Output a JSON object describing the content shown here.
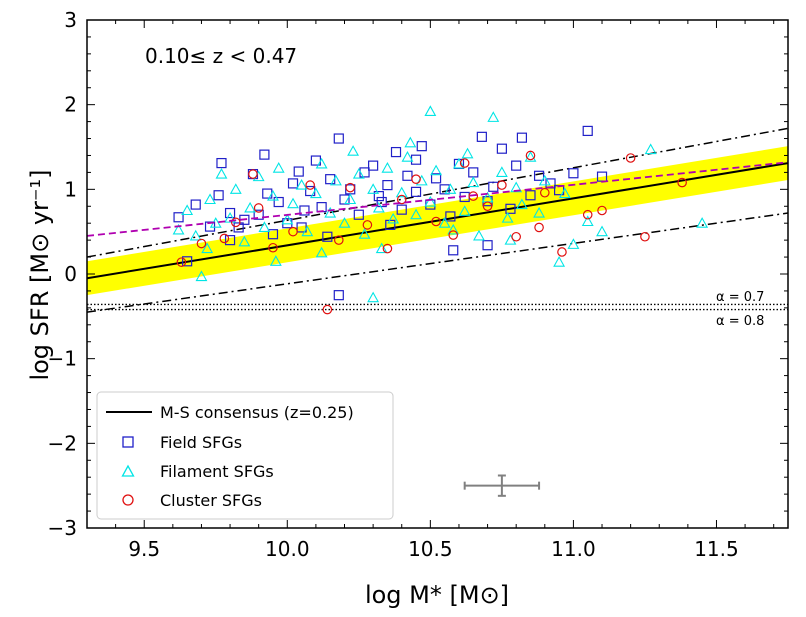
{
  "chart_data": {
    "type": "scatter",
    "annotation": "0.10≤  z < 0.47",
    "xlabel": "log M* [M⊙]",
    "ylabel": "log SFR [M⊙ yr⁻¹]",
    "xlim": [
      9.3,
      11.75
    ],
    "ylim": [
      -3,
      3
    ],
    "xticks": [
      9.5,
      10.0,
      10.5,
      11.0,
      11.5
    ],
    "xtick_labels": [
      "9.5",
      "10.0",
      "10.5",
      "11.0",
      "11.5"
    ],
    "yticks": [
      -3,
      -2,
      -1,
      0,
      1,
      2,
      3
    ],
    "ytick_labels": [
      "−3",
      "−2",
      "−1",
      "0",
      "1",
      "2",
      "3"
    ],
    "ms_consensus": {
      "label": "M-S consensus (z=0.25)",
      "x": [
        9.3,
        11.75
      ],
      "y": [
        -0.05,
        1.31
      ],
      "band_halfwidth": 0.2,
      "band_color": "#ffff00"
    },
    "dashdot_upper": {
      "x": [
        9.3,
        11.75
      ],
      "y": [
        0.2,
        1.72
      ]
    },
    "dashdot_lower": {
      "x": [
        9.3,
        11.75
      ],
      "y": [
        -0.45,
        0.72
      ]
    },
    "magenta_fit": {
      "x": [
        9.3,
        11.75
      ],
      "y": [
        0.45,
        1.32
      ],
      "color": "#b000b0"
    },
    "alpha_lines": [
      {
        "label": "α = 0.7",
        "y": -0.36
      },
      {
        "label": "α = 0.8",
        "y": -0.42
      }
    ],
    "error_bar": {
      "x": 10.75,
      "y": -2.5,
      "xerr": 0.13,
      "yerr": 0.12
    },
    "series": [
      {
        "name": "Field SFGs",
        "marker": "square",
        "color": "#2020c8",
        "points": [
          [
            9.62,
            0.67
          ],
          [
            9.65,
            0.15
          ],
          [
            9.68,
            0.82
          ],
          [
            9.73,
            0.56
          ],
          [
            9.76,
            0.93
          ],
          [
            9.77,
            1.31
          ],
          [
            9.8,
            0.72
          ],
          [
            9.83,
            0.55
          ],
          [
            9.85,
            0.64
          ],
          [
            9.88,
            1.18
          ],
          [
            9.9,
            0.7
          ],
          [
            9.92,
            1.41
          ],
          [
            9.95,
            0.47
          ],
          [
            9.97,
            0.85
          ],
          [
            10.0,
            0.6
          ],
          [
            10.02,
            1.07
          ],
          [
            10.04,
            1.21
          ],
          [
            10.06,
            0.75
          ],
          [
            10.08,
            0.98
          ],
          [
            10.1,
            1.34
          ],
          [
            10.12,
            0.79
          ],
          [
            10.14,
            0.44
          ],
          [
            10.15,
            1.12
          ],
          [
            10.18,
            1.6
          ],
          [
            10.2,
            0.88
          ],
          [
            10.22,
            1.0
          ],
          [
            10.25,
            0.7
          ],
          [
            10.27,
            1.2
          ],
          [
            10.3,
            1.28
          ],
          [
            10.32,
            0.92
          ],
          [
            10.35,
            1.05
          ],
          [
            10.36,
            0.58
          ],
          [
            10.38,
            1.44
          ],
          [
            10.4,
            0.76
          ],
          [
            10.42,
            1.16
          ],
          [
            10.45,
            0.97
          ],
          [
            10.47,
            1.51
          ],
          [
            10.5,
            0.82
          ],
          [
            10.52,
            1.13
          ],
          [
            10.55,
            1.0
          ],
          [
            10.57,
            0.68
          ],
          [
            10.6,
            1.3
          ],
          [
            10.62,
            0.91
          ],
          [
            10.65,
            1.2
          ],
          [
            10.68,
            1.62
          ],
          [
            10.7,
            0.86
          ],
          [
            10.72,
            1.03
          ],
          [
            10.75,
            1.48
          ],
          [
            10.78,
            0.77
          ],
          [
            10.8,
            1.28
          ],
          [
            10.82,
            1.61
          ],
          [
            10.85,
            0.93
          ],
          [
            10.88,
            1.16
          ],
          [
            10.92,
            1.07
          ],
          [
            10.95,
            0.99
          ],
          [
            11.0,
            1.19
          ],
          [
            11.05,
            1.69
          ],
          [
            11.1,
            1.15
          ],
          [
            10.18,
            -0.25
          ],
          [
            9.8,
            0.4
          ],
          [
            10.05,
            0.55
          ],
          [
            10.33,
            0.85
          ],
          [
            10.58,
            0.28
          ],
          [
            10.7,
            0.34
          ],
          [
            9.93,
            0.95
          ],
          [
            10.45,
            1.35
          ]
        ]
      },
      {
        "name": "Filament SFGs",
        "marker": "triangle",
        "color": "#00e5e5",
        "points": [
          [
            9.62,
            0.52
          ],
          [
            9.65,
            0.75
          ],
          [
            9.68,
            0.45
          ],
          [
            9.7,
            -0.03
          ],
          [
            9.73,
            0.88
          ],
          [
            9.75,
            0.6
          ],
          [
            9.77,
            1.18
          ],
          [
            9.8,
            0.66
          ],
          [
            9.82,
            1.0
          ],
          [
            9.85,
            0.38
          ],
          [
            9.87,
            0.78
          ],
          [
            9.9,
            1.15
          ],
          [
            9.92,
            0.55
          ],
          [
            9.95,
            0.92
          ],
          [
            9.97,
            1.25
          ],
          [
            10.0,
            0.64
          ],
          [
            10.02,
            0.83
          ],
          [
            10.05,
            1.05
          ],
          [
            10.07,
            0.5
          ],
          [
            10.1,
            0.95
          ],
          [
            10.12,
            1.3
          ],
          [
            10.15,
            0.72
          ],
          [
            10.17,
            1.1
          ],
          [
            10.2,
            0.6
          ],
          [
            10.22,
            0.88
          ],
          [
            10.25,
            1.18
          ],
          [
            10.27,
            0.47
          ],
          [
            10.3,
            -0.28
          ],
          [
            10.3,
            1.0
          ],
          [
            10.32,
            0.78
          ],
          [
            10.35,
            1.25
          ],
          [
            10.37,
            0.65
          ],
          [
            10.4,
            0.96
          ],
          [
            10.42,
            1.38
          ],
          [
            10.45,
            0.7
          ],
          [
            10.47,
            1.1
          ],
          [
            10.5,
            1.92
          ],
          [
            10.5,
            0.85
          ],
          [
            10.52,
            1.22
          ],
          [
            10.55,
            0.6
          ],
          [
            10.57,
            1.0
          ],
          [
            10.6,
            1.3
          ],
          [
            10.62,
            0.74
          ],
          [
            10.65,
            1.08
          ],
          [
            10.67,
            0.45
          ],
          [
            10.7,
            0.9
          ],
          [
            10.72,
            1.85
          ],
          [
            10.75,
            1.2
          ],
          [
            10.77,
            0.66
          ],
          [
            10.8,
            1.02
          ],
          [
            10.82,
            0.82
          ],
          [
            10.85,
            1.38
          ],
          [
            10.88,
            0.72
          ],
          [
            10.9,
            1.1
          ],
          [
            10.95,
            0.14
          ],
          [
            10.97,
            0.95
          ],
          [
            11.0,
            0.35
          ],
          [
            11.05,
            0.62
          ],
          [
            11.1,
            0.5
          ],
          [
            11.27,
            1.47
          ],
          [
            11.45,
            0.6
          ],
          [
            9.96,
            0.15
          ],
          [
            10.12,
            0.25
          ],
          [
            10.33,
            0.3
          ],
          [
            10.58,
            0.52
          ],
          [
            10.78,
            0.4
          ],
          [
            9.72,
            0.3
          ],
          [
            10.23,
            1.45
          ],
          [
            10.43,
            1.55
          ],
          [
            10.63,
            1.42
          ]
        ]
      },
      {
        "name": "Cluster SFGs",
        "marker": "circle",
        "color": "#e01010",
        "points": [
          [
            9.63,
            0.14
          ],
          [
            9.7,
            0.36
          ],
          [
            9.78,
            0.42
          ],
          [
            9.82,
            0.61
          ],
          [
            9.88,
            1.18
          ],
          [
            9.95,
            0.31
          ],
          [
            10.02,
            0.5
          ],
          [
            10.08,
            1.05
          ],
          [
            10.14,
            -0.42
          ],
          [
            10.18,
            0.4
          ],
          [
            10.22,
            1.02
          ],
          [
            10.28,
            0.58
          ],
          [
            10.35,
            0.3
          ],
          [
            10.4,
            0.88
          ],
          [
            10.45,
            1.12
          ],
          [
            10.52,
            0.62
          ],
          [
            10.58,
            0.46
          ],
          [
            10.62,
            1.31
          ],
          [
            10.7,
            0.8
          ],
          [
            10.75,
            1.05
          ],
          [
            10.8,
            0.44
          ],
          [
            10.85,
            1.4
          ],
          [
            10.9,
            0.96
          ],
          [
            10.96,
            0.26
          ],
          [
            11.05,
            0.7
          ],
          [
            11.1,
            0.75
          ],
          [
            11.2,
            1.37
          ],
          [
            11.25,
            0.44
          ],
          [
            11.38,
            1.08
          ],
          [
            9.9,
            0.78
          ],
          [
            10.65,
            0.92
          ],
          [
            10.88,
            0.55
          ]
        ]
      }
    ]
  }
}
